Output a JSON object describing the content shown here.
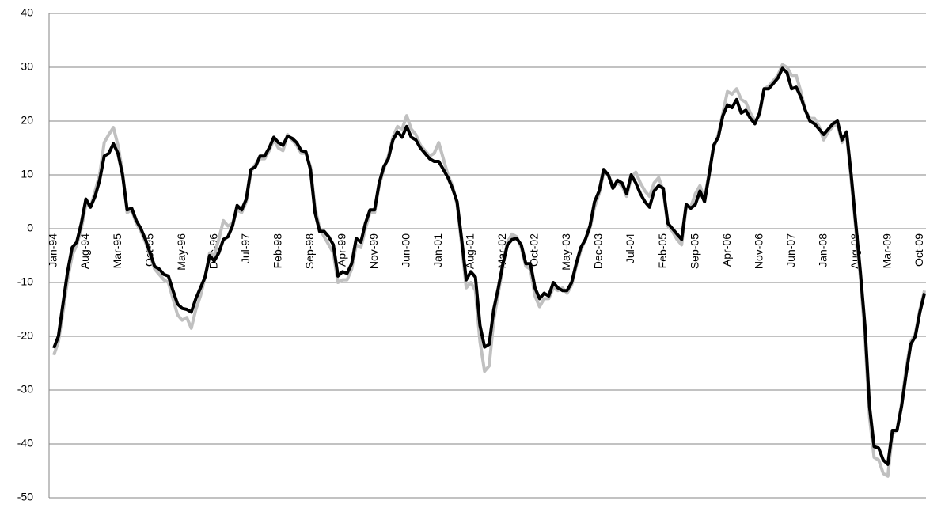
{
  "chart_data": {
    "type": "line",
    "categories": [
      "Jan-94",
      null,
      null,
      null,
      null,
      null,
      null,
      "Aug-94",
      null,
      null,
      null,
      null,
      null,
      null,
      "Mar-95",
      null,
      null,
      null,
      null,
      null,
      null,
      "Oct-95",
      null,
      null,
      null,
      null,
      null,
      null,
      "May-96",
      null,
      null,
      null,
      null,
      null,
      null,
      "Dec-96",
      null,
      null,
      null,
      null,
      null,
      null,
      "Jul-97",
      null,
      null,
      null,
      null,
      null,
      null,
      "Feb-98",
      null,
      null,
      null,
      null,
      null,
      null,
      "Sep-98",
      null,
      null,
      null,
      null,
      null,
      null,
      "Apr-99",
      null,
      null,
      null,
      null,
      null,
      null,
      "Nov-99",
      null,
      null,
      null,
      null,
      null,
      null,
      "Jun-00",
      null,
      null,
      null,
      null,
      null,
      null,
      "Jan-01",
      null,
      null,
      null,
      null,
      null,
      null,
      "Aug-01",
      null,
      null,
      null,
      null,
      null,
      null,
      "Mar-02",
      null,
      null,
      null,
      null,
      null,
      null,
      "Oct-02",
      null,
      null,
      null,
      null,
      null,
      null,
      "May-03",
      null,
      null,
      null,
      null,
      null,
      null,
      "Dec-03",
      null,
      null,
      null,
      null,
      null,
      null,
      "Jul-04",
      null,
      null,
      null,
      null,
      null,
      null,
      "Feb-05",
      null,
      null,
      null,
      null,
      null,
      null,
      "Sep-05",
      null,
      null,
      null,
      null,
      null,
      null,
      "Apr-06",
      null,
      null,
      null,
      null,
      null,
      null,
      "Nov-06",
      null,
      null,
      null,
      null,
      null,
      null,
      "Jun-07",
      null,
      null,
      null,
      null,
      null,
      null,
      "Jan-08",
      null,
      null,
      null,
      null,
      null,
      null,
      "Aug-08",
      null,
      null,
      null,
      null,
      null,
      null,
      "Mar-09",
      null,
      null,
      null,
      null,
      null,
      null,
      "Oct-09",
      null
    ],
    "series": [
      {
        "color": "#c0c0c0",
        "values": [
          -23.5,
          -21,
          -15.5,
          -9.5,
          -5,
          -3,
          0,
          4.5,
          4,
          7,
          10,
          16,
          17.5,
          18.8,
          15.5,
          10.5,
          3,
          3.5,
          1,
          -0.5,
          -2.5,
          -5,
          -7.5,
          -8.5,
          -9.5,
          -10,
          -13,
          -16,
          -17,
          -16.5,
          -18.5,
          -15,
          -12.5,
          -9,
          -4.5,
          -5,
          -2,
          1.5,
          0.5,
          1,
          3.5,
          3,
          5,
          10.5,
          12,
          13,
          13,
          14.5,
          16.5,
          15,
          14.5,
          17.5,
          16.5,
          15.5,
          14,
          14,
          11.5,
          4,
          0,
          -1.5,
          -3,
          -4.5,
          -10,
          -9.5,
          -9.5,
          -7.5,
          -3,
          -3.5,
          0,
          3,
          3,
          8,
          11,
          13.5,
          17,
          19,
          18.5,
          21,
          18.5,
          17.5,
          15.5,
          14.5,
          13.5,
          14,
          16,
          13,
          10,
          8,
          4.5,
          -3,
          -11,
          -10,
          -11.5,
          -21,
          -26.5,
          -25.5,
          -17,
          -12,
          -7,
          -2.5,
          -1,
          -1.5,
          -3.5,
          -7,
          -7.5,
          -12.5,
          -14.5,
          -13,
          -13,
          -11,
          -11.5,
          -11,
          -12,
          -10.5,
          -7,
          -4,
          -2,
          0,
          4,
          6.5,
          10.5,
          10,
          8,
          8.5,
          8,
          6,
          9.5,
          10.5,
          8.5,
          7,
          6,
          8.5,
          9.5,
          7,
          0.5,
          -0.5,
          -2,
          -3,
          4,
          4,
          6.5,
          8,
          5.5,
          10.5,
          15,
          17.5,
          21.5,
          25.5,
          25,
          26,
          24,
          23.5,
          21.5,
          20,
          21,
          26,
          26.5,
          27.5,
          28.5,
          30.5,
          30,
          28.5,
          28.5,
          25.5,
          22,
          20.5,
          20.5,
          19,
          16.5,
          18,
          19,
          19.5,
          16,
          17.5,
          9,
          0,
          -9,
          -20,
          -35,
          -42.5,
          -43,
          -45.5,
          -46,
          -38,
          -37.5,
          -32.5,
          -26,
          -21,
          -19.5,
          -15,
          -11.5
        ]
      },
      {
        "color": "#000000",
        "values": [
          -22.2,
          -20,
          -14,
          -8,
          -3.5,
          -2.5,
          1,
          5.5,
          4,
          6,
          9,
          13.5,
          14,
          15.8,
          14,
          10,
          3.5,
          3.8,
          1.5,
          0,
          -2,
          -4.5,
          -7,
          -7.5,
          -8.5,
          -8.8,
          -11.5,
          -14,
          -14.8,
          -15,
          -15.5,
          -13,
          -11,
          -9,
          -5,
          -6,
          -4.5,
          -2,
          -1.5,
          0.5,
          4.3,
          3.5,
          5.5,
          11,
          11.5,
          13.5,
          13.5,
          15,
          17,
          16,
          15.5,
          17.2,
          16.8,
          16,
          14.5,
          14.3,
          11,
          3,
          -0.5,
          -0.5,
          -1.5,
          -3,
          -8.8,
          -8,
          -8.3,
          -6.5,
          -1.8,
          -2.5,
          1,
          3.5,
          3.5,
          8.5,
          11.5,
          13,
          16.5,
          18,
          17,
          19,
          17,
          16.5,
          15,
          14,
          13,
          12.5,
          12.5,
          11,
          9.5,
          7.5,
          5,
          -2,
          -9.5,
          -8,
          -9,
          -18,
          -22,
          -21.5,
          -15,
          -11,
          -6.5,
          -3,
          -2,
          -1.8,
          -3,
          -6.5,
          -6.5,
          -11,
          -13,
          -12,
          -12.5,
          -10,
          -11,
          -11.5,
          -11.5,
          -10,
          -6.5,
          -3.5,
          -2,
          0.5,
          5,
          7,
          11,
          10,
          7.5,
          9,
          8.5,
          6.5,
          10,
          8.5,
          6.5,
          5,
          4,
          7,
          8,
          7.5,
          1,
          0,
          -1,
          -2,
          4.5,
          3.8,
          4.5,
          7,
          5,
          10,
          15.5,
          17,
          21,
          23,
          22.5,
          24,
          21.5,
          22,
          20.5,
          19.5,
          21.5,
          26,
          26,
          27,
          28,
          29.8,
          29,
          26,
          26.3,
          24.5,
          22,
          20,
          19.5,
          18.5,
          17.5,
          18.5,
          19.5,
          20,
          16.5,
          18,
          10,
          1,
          -8,
          -18,
          -33,
          -40.5,
          -40.8,
          -43,
          -43.8,
          -37.5,
          -37.5,
          -33,
          -27,
          -21.5,
          -20,
          -15.5,
          -12
        ]
      }
    ],
    "ylim": [
      -50,
      40
    ],
    "yticks": [
      -50,
      -40,
      -30,
      -20,
      -10,
      0,
      10,
      20,
      30,
      40
    ],
    "grid": true
  }
}
